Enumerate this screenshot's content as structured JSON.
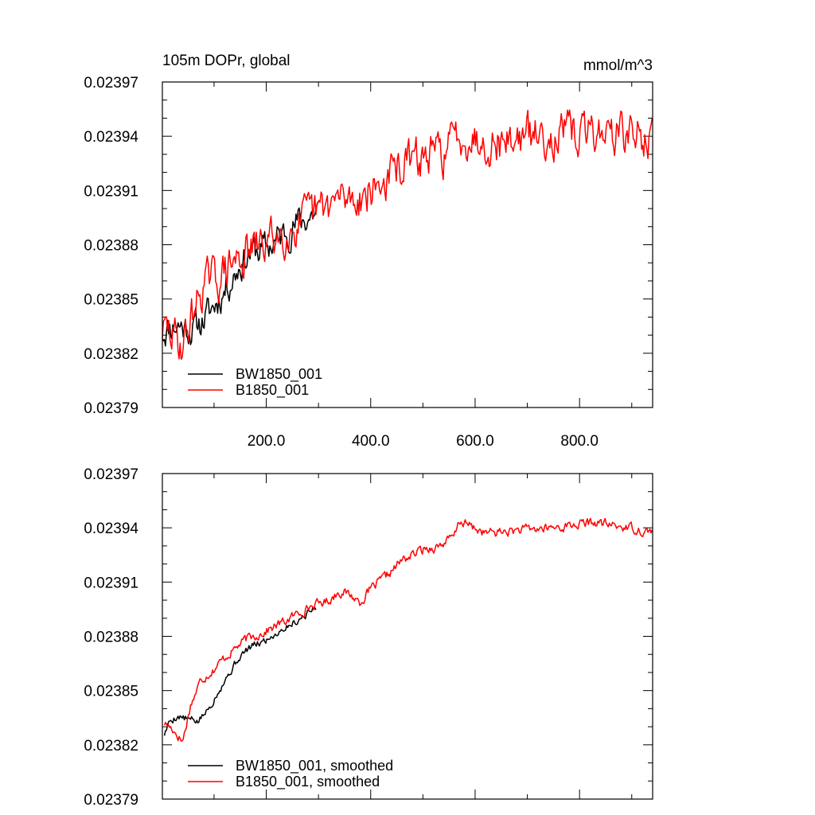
{
  "chart_data": [
    {
      "type": "line",
      "title": "105m DOPr, global",
      "units": "mmol/m^3",
      "xlim": [
        1,
        940
      ],
      "ylim": [
        0.02379,
        0.02397
      ],
      "x_ticks": [
        200,
        400,
        600,
        800
      ],
      "x_tick_labels": [
        "200.0",
        "400.0",
        "600.0",
        "800.0"
      ],
      "y_ticks": [
        0.02379,
        0.02382,
        0.02385,
        0.02388,
        0.02391,
        0.02394,
        0.02397
      ],
      "y_tick_labels": [
        "0.02379",
        "0.02382",
        "0.02385",
        "0.02388",
        "0.02391",
        "0.02394",
        "0.02397"
      ],
      "legend_position": "bottom-left",
      "grid": false,
      "series": [
        {
          "name": "BW1850_001",
          "color": "#000000",
          "noise": 7.5e-06,
          "seed": 11,
          "points": [
            [
              1,
              0.023832
            ],
            [
              15,
              0.023835
            ],
            [
              30,
              0.023836
            ],
            [
              60,
              0.023833
            ],
            [
              90,
              0.023842
            ],
            [
              120,
              0.023855
            ],
            [
              150,
              0.023869
            ],
            [
              170,
              0.023876
            ],
            [
              200,
              0.023878
            ],
            [
              230,
              0.023885
            ],
            [
              260,
              0.023892
            ],
            [
              290,
              0.023897
            ],
            [
              300,
              0.023899
            ]
          ]
        },
        {
          "name": "B1850_001",
          "color": "#ff0000",
          "noise": 9.5e-06,
          "seed": 29,
          "points": [
            [
              1,
              0.023833
            ],
            [
              20,
              0.02383
            ],
            [
              40,
              0.023825
            ],
            [
              60,
              0.023843
            ],
            [
              80,
              0.023859
            ],
            [
              110,
              0.023862
            ],
            [
              140,
              0.023871
            ],
            [
              180,
              0.023878
            ],
            [
              220,
              0.023885
            ],
            [
              260,
              0.023891
            ],
            [
              300,
              0.023898
            ],
            [
              340,
              0.023905
            ],
            [
              380,
              0.023907
            ],
            [
              420,
              0.023913
            ],
            [
              460,
              0.023924
            ],
            [
              500,
              0.023928
            ],
            [
              540,
              0.023931
            ],
            [
              570,
              0.023942
            ],
            [
              600,
              0.023939
            ],
            [
              650,
              0.023937
            ],
            [
              700,
              0.02394
            ],
            [
              750,
              0.023941
            ],
            [
              800,
              0.023941
            ],
            [
              830,
              0.023943
            ],
            [
              870,
              0.023942
            ],
            [
              900,
              0.023941
            ],
            [
              940,
              0.023938
            ]
          ]
        }
      ]
    },
    {
      "type": "line",
      "title": "",
      "xlim": [
        1,
        940
      ],
      "ylim": [
        0.02379,
        0.02397
      ],
      "y_ticks": [
        0.02379,
        0.02382,
        0.02385,
        0.02388,
        0.02391,
        0.02394,
        0.02397
      ],
      "y_tick_labels": [
        "0.02379",
        "0.02382",
        "0.02385",
        "0.02388",
        "0.02391",
        "0.02394",
        "0.02397"
      ],
      "legend_position": "bottom-left",
      "grid": false,
      "series": [
        {
          "name": "BW1850_001, smoothed",
          "color": "#000000",
          "noise": 1.8e-06,
          "seed": 5,
          "points": [
            [
              5,
              0.023826
            ],
            [
              15,
              0.023833
            ],
            [
              30,
              0.023836
            ],
            [
              50,
              0.023834
            ],
            [
              70,
              0.023833
            ],
            [
              90,
              0.02384
            ],
            [
              110,
              0.023851
            ],
            [
              130,
              0.02386
            ],
            [
              150,
              0.023869
            ],
            [
              170,
              0.023874
            ],
            [
              200,
              0.023878
            ],
            [
              230,
              0.023884
            ],
            [
              260,
              0.023889
            ],
            [
              280,
              0.023893
            ],
            [
              295,
              0.023896
            ]
          ]
        },
        {
          "name": "B1850_001, smoothed",
          "color": "#ff0000",
          "noise": 2.2e-06,
          "seed": 17,
          "points": [
            [
              5,
              0.023832
            ],
            [
              20,
              0.023829
            ],
            [
              40,
              0.023822
            ],
            [
              55,
              0.023842
            ],
            [
              75,
              0.023856
            ],
            [
              100,
              0.023862
            ],
            [
              130,
              0.023871
            ],
            [
              160,
              0.023878
            ],
            [
              200,
              0.023883
            ],
            [
              240,
              0.023889
            ],
            [
              280,
              0.023896
            ],
            [
              320,
              0.0239
            ],
            [
              340,
              0.023905
            ],
            [
              360,
              0.023903
            ],
            [
              380,
              0.023899
            ],
            [
              400,
              0.023906
            ],
            [
              430,
              0.023913
            ],
            [
              460,
              0.023922
            ],
            [
              500,
              0.023928
            ],
            [
              530,
              0.02393
            ],
            [
              560,
              0.023935
            ],
            [
              570,
              0.023944
            ],
            [
              590,
              0.023941
            ],
            [
              620,
              0.023937
            ],
            [
              660,
              0.023938
            ],
            [
              700,
              0.023939
            ],
            [
              750,
              0.02394
            ],
            [
              800,
              0.023942
            ],
            [
              830,
              0.023943
            ],
            [
              870,
              0.023941
            ],
            [
              900,
              0.02394
            ],
            [
              930,
              0.023938
            ],
            [
              940,
              0.023939
            ]
          ]
        }
      ]
    }
  ]
}
